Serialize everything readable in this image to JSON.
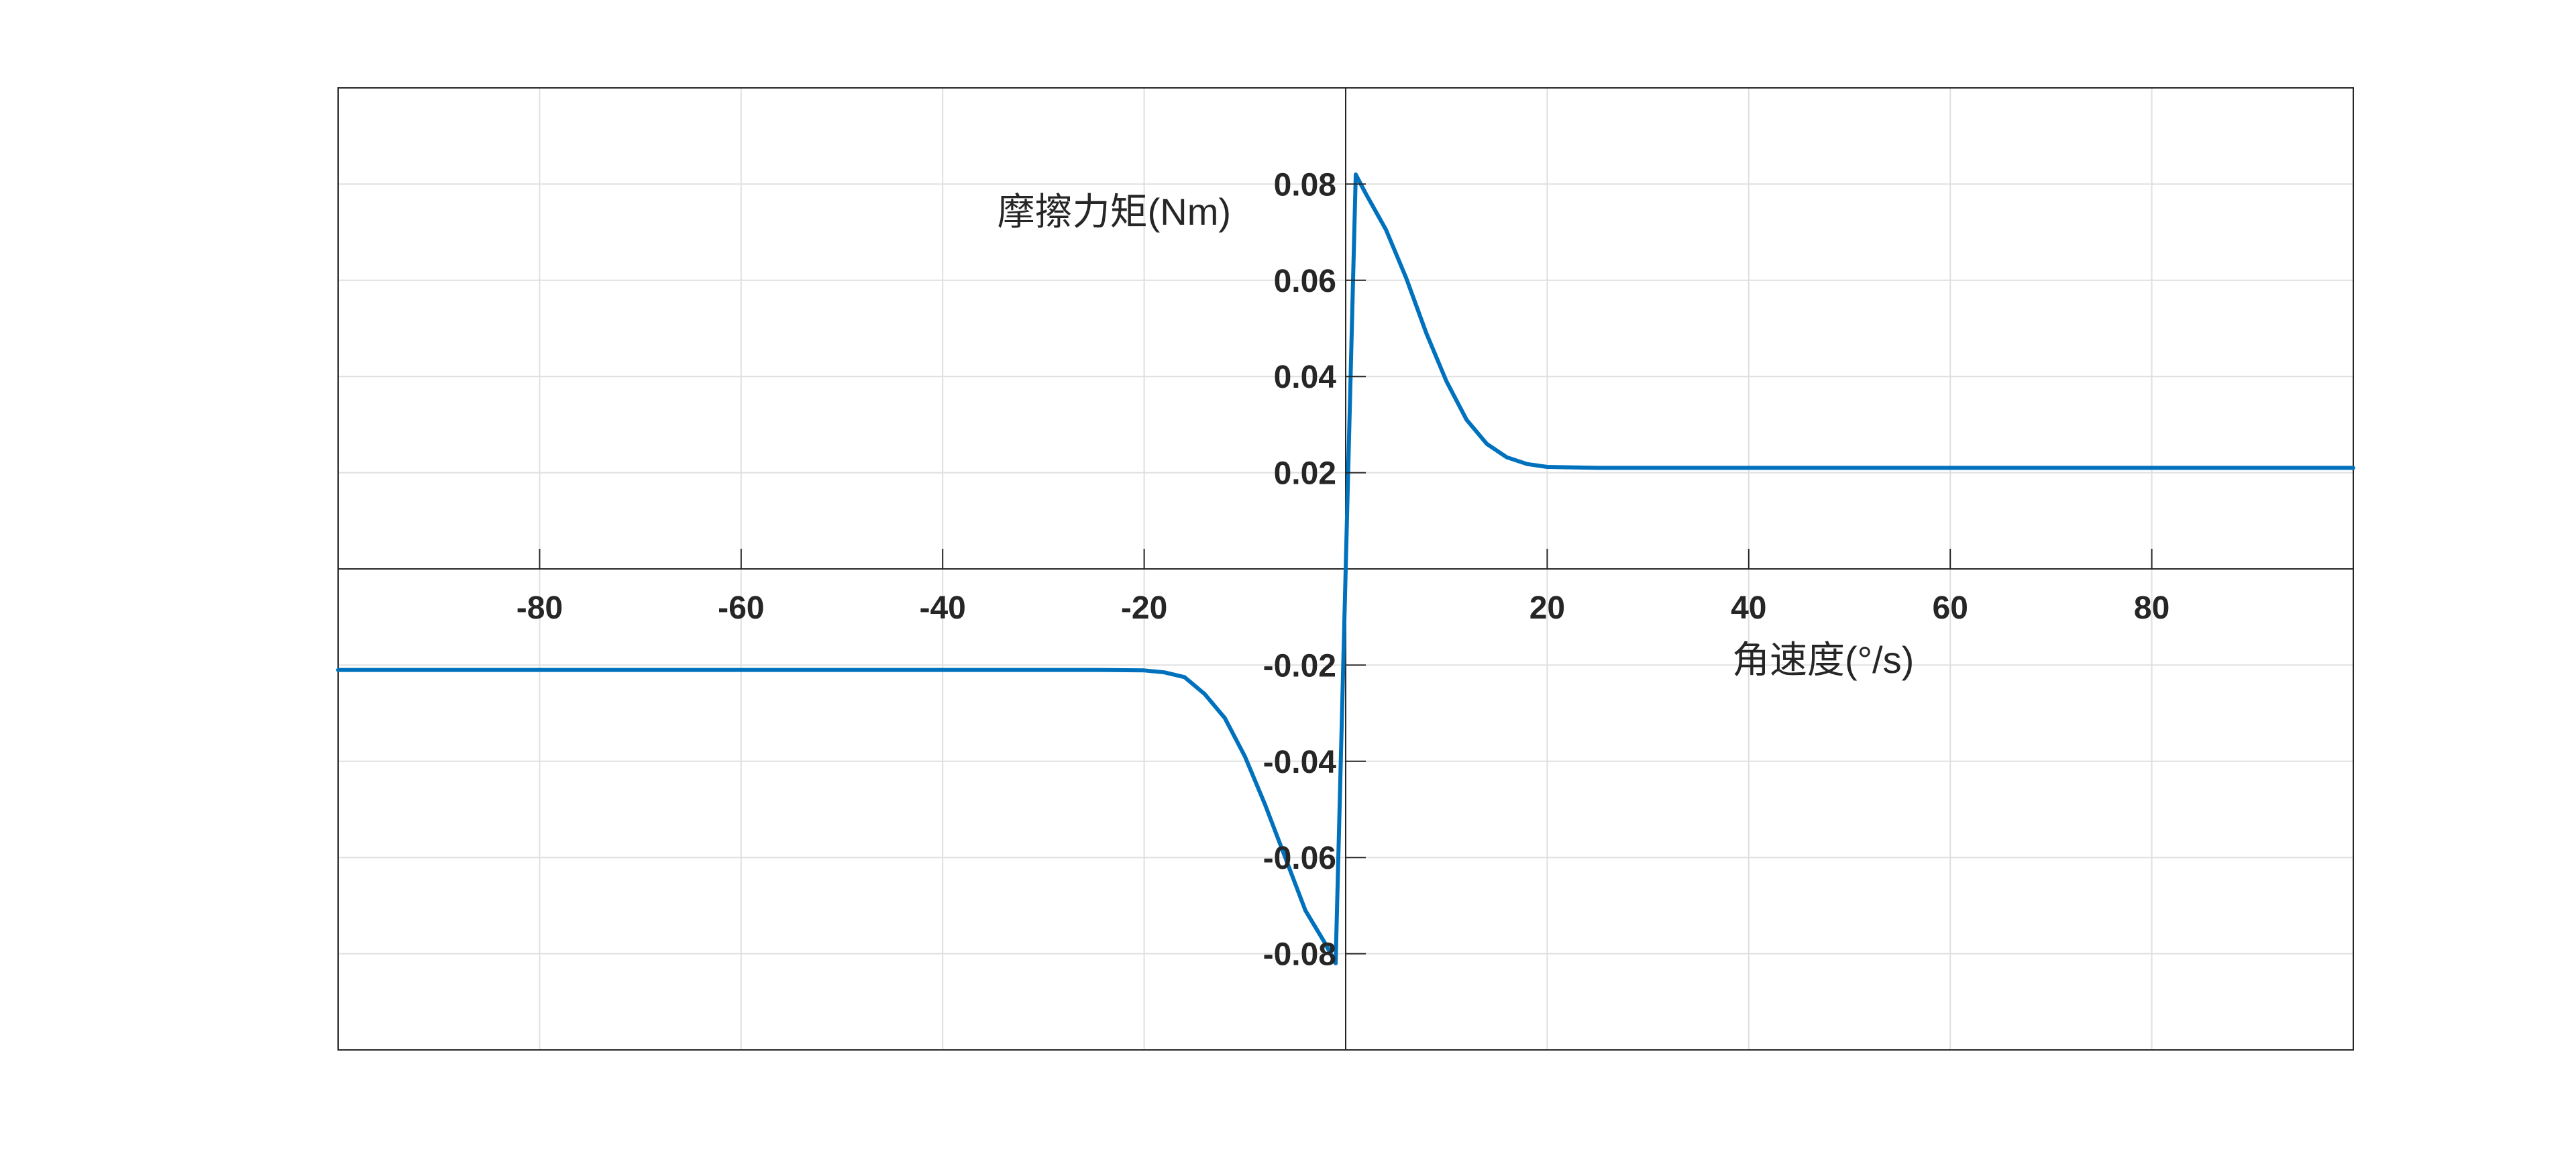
{
  "chart_data": {
    "type": "line",
    "title": "",
    "xlabel": "角速度(°/s)",
    "ylabel": "摩擦力矩(Nm)",
    "xlim": [
      -100,
      100
    ],
    "ylim": [
      -0.1,
      0.1
    ],
    "grid": true,
    "legend": "none",
    "x_ticks": [
      -80,
      -60,
      -40,
      -20,
      20,
      40,
      60,
      80
    ],
    "x_tick_labels": [
      "-80",
      "-60",
      "-40",
      "-20",
      "20",
      "40",
      "60",
      "80"
    ],
    "y_ticks": [
      0.08,
      0.06,
      0.04,
      0.02,
      -0.02,
      -0.04,
      -0.06,
      -0.08
    ],
    "y_tick_labels": [
      "0.08",
      "0.06",
      "0.04",
      "0.02",
      "-0.02",
      "-0.04",
      "-0.06",
      "-0.08"
    ],
    "line_color": "#0072BD",
    "series": [
      {
        "x": [
          -100,
          -80,
          -60,
          -40,
          -25,
          -20,
          -18,
          -16,
          -14,
          -12,
          -10,
          -8,
          -6,
          -4,
          -2,
          -1,
          0,
          1,
          2,
          4,
          6,
          8,
          10,
          12,
          14,
          16,
          18,
          20,
          25,
          40,
          60,
          80,
          100
        ],
        "values": [
          -0.021,
          -0.021,
          -0.021,
          -0.021,
          -0.021,
          -0.0211,
          -0.0215,
          -0.0225,
          -0.026,
          -0.031,
          -0.039,
          -0.049,
          -0.06,
          -0.071,
          -0.078,
          -0.082,
          0.0,
          0.082,
          0.078,
          0.0705,
          0.0605,
          0.049,
          0.039,
          0.031,
          0.026,
          0.0232,
          0.0218,
          0.0212,
          0.021,
          0.021,
          0.021,
          0.021,
          0.021
        ]
      }
    ]
  }
}
